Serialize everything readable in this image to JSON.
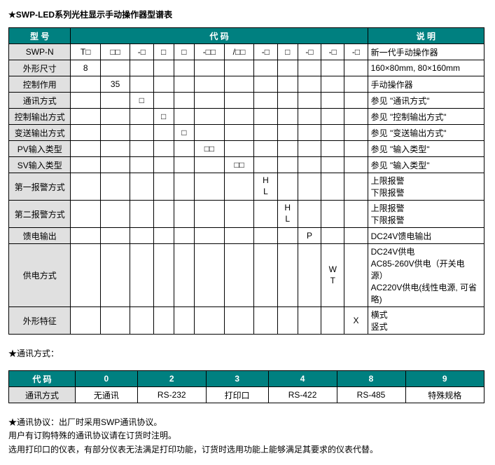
{
  "title": "★SWP-LED系列光柱显示手动操作器型谱表",
  "mainTable": {
    "headerModel": "型 号",
    "headerCode": "代 码",
    "headerDesc": "说 明",
    "rows": [
      {
        "label": "SWP-N",
        "c1": "T□",
        "c2": "□□",
        "c3": "-□",
        "c4": "□",
        "c5": "□",
        "c6": "-□□",
        "c7": "/□□",
        "c8": "-□",
        "c9": "□",
        "c10": "-□",
        "c11": "-□",
        "c12": "-□",
        "desc": "新一代手动操作器"
      },
      {
        "label": "外形尺寸",
        "c1": "8",
        "desc": "160×80mm, 80×160mm"
      },
      {
        "label": "控制作用",
        "c2": "35",
        "desc": "手动操作器"
      },
      {
        "label": "通讯方式",
        "c3": "□",
        "desc": "参见 \"通讯方式\""
      },
      {
        "label": "控制输出方式",
        "c4": "□",
        "desc": "参见 \"控制输出方式\""
      },
      {
        "label": "变送输出方式",
        "c5": "□",
        "desc": "参见 \"变送输出方式\""
      },
      {
        "label": "PV输入类型",
        "c6": "□□",
        "desc": "参见 \"输入类型\""
      },
      {
        "label": "SV输入类型",
        "c7": "□□",
        "desc": "参见 \"输入类型\""
      },
      {
        "label": "第一报警方式",
        "c8": "H\nL",
        "desc": "上限报警\n下限报警"
      },
      {
        "label": "第二报警方式",
        "c9": "H\nL",
        "desc": "上限报警\n下限报警"
      },
      {
        "label": "馈电输出",
        "c10": "P",
        "desc": "DC24V馈电输出"
      },
      {
        "label": "供电方式",
        "c11": "W\nT",
        "desc": "DC24V供电\nAC85-260V供电（开关电源）\nAC220V供电(线性电源, 可省略)"
      },
      {
        "label": "外形特征",
        "c12": "X",
        "desc": "横式\n竖式"
      }
    ]
  },
  "sectionCommLabel": "★通讯方式：",
  "commTable": {
    "headerCode": "代 码",
    "headerComm": "通讯方式",
    "cols": [
      {
        "code": "0",
        "val": "无通讯"
      },
      {
        "code": "2",
        "val": "RS-232"
      },
      {
        "code": "3",
        "val": "打印口"
      },
      {
        "code": "4",
        "val": "RS-422"
      },
      {
        "code": "8",
        "val": "RS-485"
      },
      {
        "code": "9",
        "val": "特殊规格"
      }
    ]
  },
  "footerNotes": [
    "★通讯协议：出厂时采用SWP通讯协议。",
    "用户有订购特殊的通讯协议请在订货时注明。",
    "选用打印口的仪表，有部分仪表无法满足打印功能，订货时选用功能上能够满足其要求的仪表代替。"
  ]
}
